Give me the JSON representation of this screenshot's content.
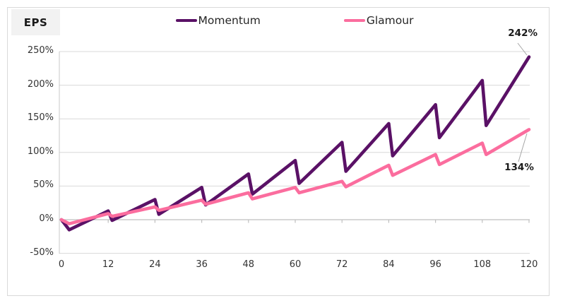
{
  "header": {
    "eps_label": "EPS"
  },
  "legend": [
    {
      "label": "Momentum",
      "color": "#5a1166"
    },
    {
      "label": "Glamour",
      "color": "#fb6d9e"
    }
  ],
  "colors": {
    "momentum": "#5a1166",
    "glamour": "#fb6d9e",
    "gridline": "#d9d9d9",
    "axis": "#bfbfbf",
    "leader_line": "#a6a6a6",
    "tick_text": "#333333",
    "badge_bg": "#f2f2f2",
    "frame_border": "#d9d9d9"
  },
  "chart_data": {
    "type": "line",
    "title": "",
    "ylabel": "EPS",
    "xlabel": "",
    "xlim": [
      0,
      120
    ],
    "ylim": [
      -50,
      250
    ],
    "grid": true,
    "legend_position": "top-center",
    "x_ticks": [
      0,
      12,
      24,
      36,
      48,
      60,
      72,
      84,
      96,
      108,
      120
    ],
    "y_ticks": [
      -50,
      0,
      50,
      100,
      150,
      200,
      250
    ],
    "y_tick_labels": [
      "-50%",
      "0%",
      "50%",
      "100%",
      "150%",
      "200%",
      "250%"
    ],
    "series": [
      {
        "name": "Momentum",
        "color": "#5a1166",
        "points": [
          [
            0,
            0
          ],
          [
            2,
            -15
          ],
          [
            12,
            13
          ],
          [
            13,
            -1
          ],
          [
            24,
            30
          ],
          [
            25,
            8
          ],
          [
            36,
            48
          ],
          [
            37,
            22
          ],
          [
            48,
            68
          ],
          [
            49,
            38
          ],
          [
            60,
            88
          ],
          [
            61,
            54
          ],
          [
            72,
            115
          ],
          [
            73,
            72
          ],
          [
            84,
            143
          ],
          [
            85,
            95
          ],
          [
            96,
            171
          ],
          [
            97,
            122
          ],
          [
            108,
            207
          ],
          [
            109,
            140
          ],
          [
            120,
            242
          ]
        ]
      },
      {
        "name": "Glamour",
        "color": "#fb6d9e",
        "points": [
          [
            0,
            0
          ],
          [
            2,
            -6
          ],
          [
            12,
            9
          ],
          [
            13,
            5
          ],
          [
            24,
            19
          ],
          [
            25,
            14
          ],
          [
            36,
            29
          ],
          [
            37,
            23
          ],
          [
            48,
            40
          ],
          [
            49,
            31
          ],
          [
            60,
            48
          ],
          [
            61,
            40
          ],
          [
            72,
            57
          ],
          [
            73,
            49
          ],
          [
            84,
            81
          ],
          [
            85,
            66
          ],
          [
            96,
            97
          ],
          [
            97,
            82
          ],
          [
            108,
            114
          ],
          [
            109,
            97
          ],
          [
            120,
            134
          ]
        ]
      }
    ],
    "annotations": [
      {
        "text": "242%",
        "series": "Momentum",
        "value": 242,
        "month": 120
      },
      {
        "text": "134%",
        "series": "Glamour",
        "value": 134,
        "month": 120
      }
    ]
  }
}
